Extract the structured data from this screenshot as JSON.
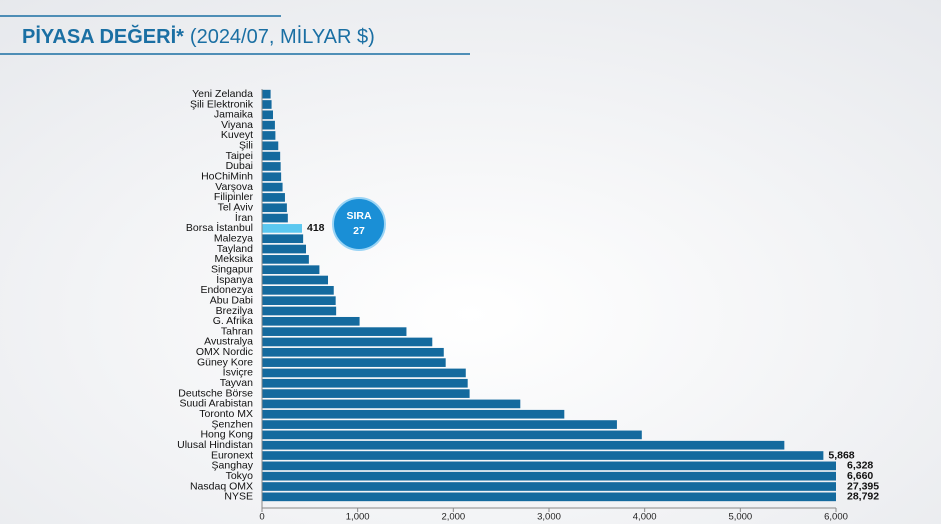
{
  "chart_data": {
    "type": "barh",
    "title": "PİYASA DEĞERİ*",
    "subtitle": "(2024/07, MİLYAR $)",
    "annotation": {
      "lines": [
        "SIRA",
        "27"
      ],
      "color": "#1a8fd6"
    },
    "categories": [
      "Yeni Zelanda",
      "Şili Elektronik",
      "Jamaika",
      "Viyana",
      "Kuveyt",
      "Şili",
      "Taipei",
      "Dubai",
      "HoChiMinh",
      "Varşova",
      "Filipinler",
      "Tel Aviv",
      "İran",
      "Borsa İstanbul",
      "Malezya",
      "Tayland",
      "Meksika",
      "Singapur",
      "İspanya",
      "Endonezya",
      "Abu Dabi",
      "Brezilya",
      "G. Afrika",
      "Tahran",
      "Avustralya",
      "OMX Nordic",
      "Güney Kore",
      "İsviçre",
      "Tayvan",
      "Deutsche Börse",
      "Suudi Arabistan",
      "Toronto MX",
      "Şenzhen",
      "Hong Kong",
      "Ulusal Hindistan",
      "Euronext",
      "Şanghay",
      "Tokyo",
      "Nasdaq OMX",
      "NYSE"
    ],
    "values": [
      90,
      100,
      115,
      135,
      140,
      170,
      190,
      195,
      200,
      215,
      240,
      260,
      270,
      418,
      430,
      460,
      490,
      600,
      690,
      750,
      770,
      775,
      1020,
      1510,
      1780,
      1900,
      1920,
      2130,
      2150,
      2170,
      2700,
      3160,
      3710,
      3970,
      5460,
      5868,
      6328,
      6660,
      27395,
      28792
    ],
    "value_labels": [
      null,
      null,
      null,
      null,
      null,
      null,
      null,
      null,
      null,
      null,
      null,
      null,
      null,
      "418",
      null,
      null,
      null,
      null,
      null,
      null,
      null,
      null,
      null,
      null,
      null,
      null,
      null,
      null,
      null,
      null,
      null,
      null,
      null,
      null,
      null,
      "5,868",
      "6,328",
      "6,660",
      "27,395",
      "28,792"
    ],
    "color": "#146a9e",
    "highlight_color": "#5bc8f0",
    "highlight": [
      13
    ],
    "xlim": [
      0,
      6000
    ],
    "xticks": [
      0,
      {
        "value": 1000,
        "label": "1,000"
      },
      {
        "value": 2000,
        "label": "2,000"
      },
      {
        "value": 3000,
        "label": "3,000"
      },
      {
        "value": 4000,
        "label": "4,000"
      },
      {
        "value": 5000,
        "label": "5,000"
      },
      {
        "value": 6000,
        "label": "6,000"
      }
    ]
  }
}
